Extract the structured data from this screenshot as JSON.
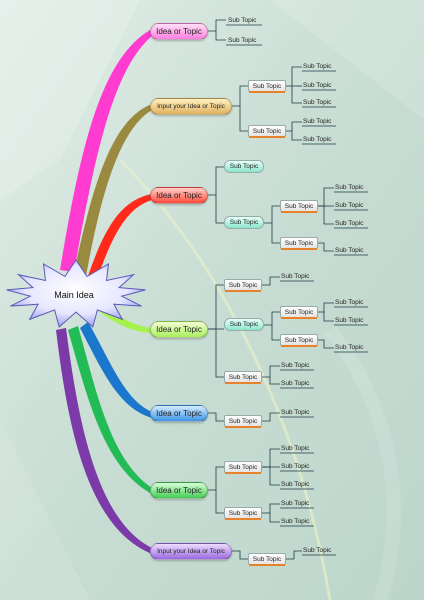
{
  "colors": {
    "background": "#cfe2d9",
    "topic_pink": "#ff3ccf",
    "topic_olive": "#9a8a40",
    "topic_red": "#ff2a1a",
    "topic_lime": "#a6f24c",
    "topic_blue": "#1a77cc",
    "topic_green": "#22bb55",
    "topic_purple": "#7b3aa8",
    "underline": "#e8822a"
  },
  "main_idea": {
    "label": "Main Idea"
  },
  "branches": [
    {
      "label": "Idea or Topic",
      "subs": [
        {
          "leaf": "Sub Topic"
        },
        {
          "leaf": "Sub Topic"
        }
      ]
    },
    {
      "label": "Input your Idea or Topic",
      "subs": [
        {
          "label": "Sub Topic",
          "leaves": [
            "Sub Topic",
            "Sub Topic",
            "Sub Topic"
          ]
        },
        {
          "label": "Sub Topic",
          "leaves": [
            "Sub Topic",
            "Sub Topic"
          ]
        }
      ]
    },
    {
      "label": "Idea or Topic",
      "subs": [
        {
          "label": "Sub Topic"
        },
        {
          "label": "Sub Topic",
          "children": [
            {
              "label": "Sub Topic",
              "leaves": [
                "Sub Topic",
                "Sub Topic",
                "Sub Topic"
              ]
            },
            {
              "label": "Sub Topic",
              "leaves": [
                "Sub Topic"
              ]
            }
          ]
        }
      ]
    },
    {
      "label": "Idea or Topic",
      "subs": [
        {
          "label": "Sub Topic",
          "leaves": [
            "Sub Topic"
          ]
        },
        {
          "label": "Sub Topic",
          "children": [
            {
              "label": "Sub Topic",
              "leaves": [
                "Sub Topic",
                "Sub Topic"
              ]
            },
            {
              "label": "Sub Topic",
              "leaves": [
                "Sub Topic"
              ]
            }
          ]
        },
        {
          "label": "Sub Topic",
          "leaves": [
            "Sub Topic",
            "Sub Topic"
          ]
        }
      ]
    },
    {
      "label": "Idea or Topic",
      "subs": [
        {
          "label": "Sub Topic",
          "leaves": [
            "Sub Topic"
          ]
        }
      ]
    },
    {
      "label": "Idea or Topic",
      "subs": [
        {
          "label": "Sub Topic",
          "leaves": [
            "Sub Topic",
            "Sub Topic",
            "Sub Topic"
          ]
        },
        {
          "label": "Sub Topic",
          "leaves": [
            "Sub Topic",
            "Sub Topic"
          ]
        }
      ]
    },
    {
      "label": "Input your Idea or Topic",
      "subs": [
        {
          "label": "Sub Topic",
          "leaves": [
            "Sub Topic"
          ]
        }
      ]
    }
  ]
}
